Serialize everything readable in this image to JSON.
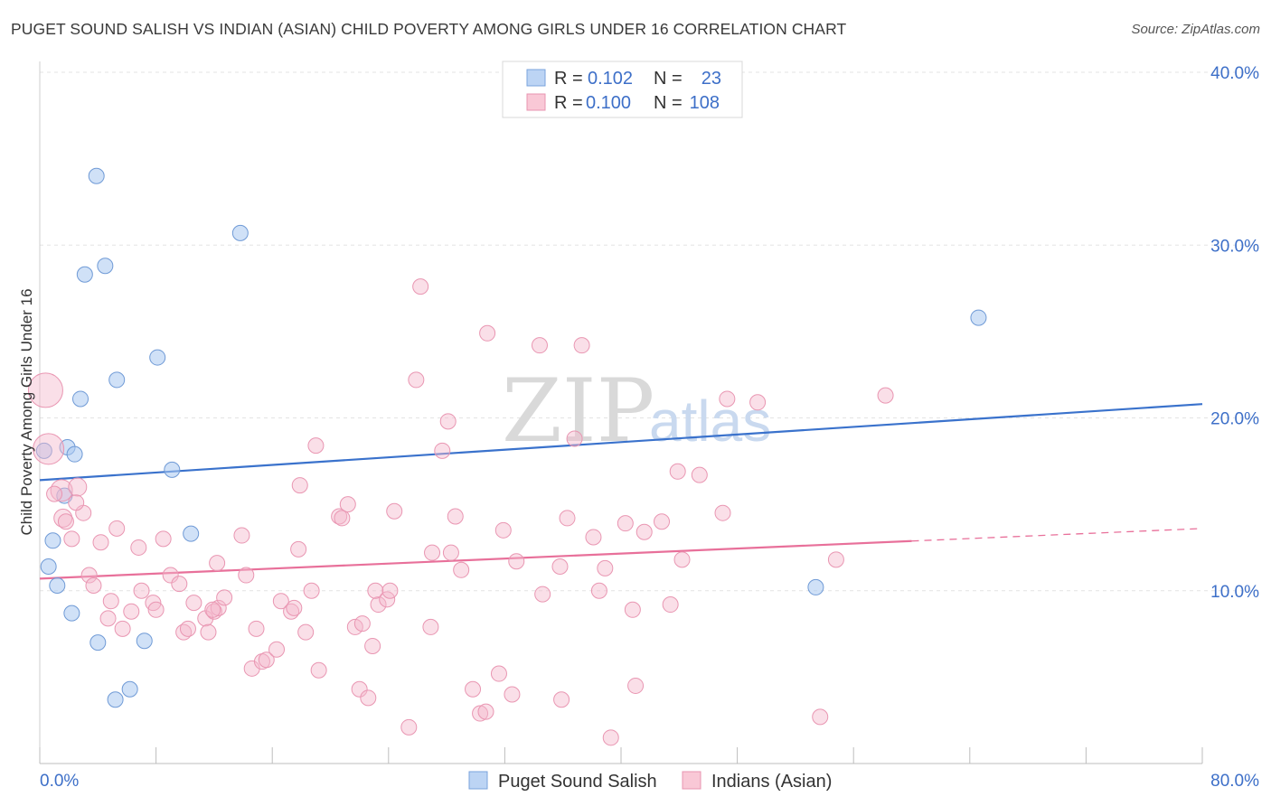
{
  "title": "PUGET SOUND SALISH VS INDIAN (ASIAN) CHILD POVERTY AMONG GIRLS UNDER 16 CORRELATION CHART",
  "source": "Source: ZipAtlas.com",
  "watermark": {
    "zip": "ZIP",
    "atlas": "atlas"
  },
  "legend": {
    "rows": [
      {
        "r_label": "R =",
        "r_value": "0.102",
        "n_label": "N =",
        "n_value": "23"
      },
      {
        "r_label": "R =",
        "r_value": "0.100",
        "n_label": "N =",
        "n_value": "108"
      }
    ]
  },
  "bottom_legend": [
    "Puget Sound Salish",
    "Indians (Asian)"
  ],
  "chart_data": {
    "type": "scatter",
    "title": "PUGET SOUND SALISH VS INDIAN (ASIAN) CHILD POVERTY AMONG GIRLS UNDER 16 CORRELATION CHART",
    "xlabel": "",
    "ylabel": "Child Poverty Among Girls Under 16",
    "xlim": [
      0,
      80
    ],
    "ylim": [
      0,
      40
    ],
    "x_tick_labels": [
      "0.0%",
      "80.0%"
    ],
    "y_ticks": [
      10,
      20,
      30,
      40
    ],
    "y_tick_labels": [
      "10.0%",
      "20.0%",
      "30.0%",
      "40.0%"
    ],
    "colors": {
      "blue": "#a9c8f0",
      "blue_line": "#3a72cc",
      "pink": "#f5b8cb",
      "pink_line": "#e8709a",
      "axis_text": "#3d6fc8"
    },
    "series": [
      {
        "name": "Puget Sound Salish",
        "color": "blue",
        "trend": {
          "x0": 0,
          "y0": 16.4,
          "x1": 80,
          "y1": 20.8,
          "dashed_from": null
        },
        "points": [
          [
            3.9,
            34.0
          ],
          [
            13.8,
            30.7
          ],
          [
            4.5,
            28.8
          ],
          [
            3.1,
            28.3
          ],
          [
            8.1,
            23.5
          ],
          [
            5.3,
            22.2
          ],
          [
            2.8,
            21.1
          ],
          [
            1.9,
            18.3
          ],
          [
            2.4,
            17.9
          ],
          [
            0.3,
            18.1
          ],
          [
            9.1,
            17.0
          ],
          [
            1.7,
            15.5
          ],
          [
            0.9,
            12.9
          ],
          [
            10.4,
            13.3
          ],
          [
            0.6,
            11.4
          ],
          [
            1.2,
            10.3
          ],
          [
            2.2,
            8.7
          ],
          [
            4.0,
            7.0
          ],
          [
            7.2,
            7.1
          ],
          [
            6.2,
            4.3
          ],
          [
            5.2,
            3.7
          ],
          [
            64.6,
            25.8
          ],
          [
            53.4,
            10.2
          ]
        ]
      },
      {
        "name": "Indians (Asian)",
        "color": "pink",
        "trend": {
          "x0": 0,
          "y0": 10.7,
          "x1": 80,
          "y1": 13.6,
          "dashed_from": 60
        },
        "points": [
          [
            0.4,
            21.6
          ],
          [
            0.6,
            18.2
          ],
          [
            1.5,
            15.8
          ],
          [
            2.6,
            16.0
          ],
          [
            1.6,
            14.2
          ],
          [
            1.8,
            14.0
          ],
          [
            3.0,
            14.5
          ],
          [
            2.2,
            13.0
          ],
          [
            4.2,
            12.8
          ],
          [
            5.3,
            13.6
          ],
          [
            6.8,
            12.5
          ],
          [
            8.5,
            13.0
          ],
          [
            3.4,
            10.9
          ],
          [
            3.7,
            10.3
          ],
          [
            4.9,
            9.4
          ],
          [
            6.3,
            8.8
          ],
          [
            7.0,
            10.0
          ],
          [
            7.8,
            9.3
          ],
          [
            8.0,
            8.9
          ],
          [
            4.7,
            8.4
          ],
          [
            5.7,
            7.8
          ],
          [
            9.0,
            10.9
          ],
          [
            9.6,
            10.4
          ],
          [
            9.9,
            7.6
          ],
          [
            10.2,
            7.8
          ],
          [
            10.6,
            9.3
          ],
          [
            11.4,
            8.4
          ],
          [
            12.0,
            8.8
          ],
          [
            12.3,
            9.0
          ],
          [
            12.7,
            9.6
          ],
          [
            13.9,
            13.2
          ],
          [
            14.2,
            10.9
          ],
          [
            12.2,
            11.6
          ],
          [
            11.6,
            7.6
          ],
          [
            14.9,
            7.8
          ],
          [
            14.6,
            5.5
          ],
          [
            15.3,
            5.9
          ],
          [
            15.6,
            6.0
          ],
          [
            16.3,
            6.6
          ],
          [
            16.6,
            9.4
          ],
          [
            17.3,
            8.8
          ],
          [
            17.5,
            9.0
          ],
          [
            18.3,
            7.6
          ],
          [
            18.7,
            10.0
          ],
          [
            19.2,
            5.4
          ],
          [
            17.8,
            12.4
          ],
          [
            19.0,
            18.4
          ],
          [
            17.9,
            16.1
          ],
          [
            20.6,
            14.3
          ],
          [
            20.8,
            14.2
          ],
          [
            21.2,
            15.0
          ],
          [
            21.7,
            7.9
          ],
          [
            22.2,
            8.1
          ],
          [
            22.0,
            4.3
          ],
          [
            22.6,
            3.8
          ],
          [
            22.9,
            6.8
          ],
          [
            23.3,
            9.2
          ],
          [
            23.1,
            10.0
          ],
          [
            23.9,
            9.5
          ],
          [
            24.1,
            10.0
          ],
          [
            24.4,
            14.6
          ],
          [
            25.4,
            2.1
          ],
          [
            25.9,
            22.2
          ],
          [
            26.2,
            27.6
          ],
          [
            26.9,
            7.9
          ],
          [
            27.0,
            12.2
          ],
          [
            27.7,
            18.1
          ],
          [
            28.1,
            19.8
          ],
          [
            28.3,
            12.2
          ],
          [
            28.6,
            14.3
          ],
          [
            29.0,
            11.2
          ],
          [
            29.8,
            4.3
          ],
          [
            30.3,
            2.9
          ],
          [
            30.7,
            3.0
          ],
          [
            30.8,
            24.9
          ],
          [
            31.6,
            5.2
          ],
          [
            31.9,
            13.5
          ],
          [
            32.5,
            4.0
          ],
          [
            32.8,
            11.7
          ],
          [
            34.4,
            24.2
          ],
          [
            34.6,
            9.8
          ],
          [
            35.9,
            3.7
          ],
          [
            35.8,
            11.4
          ],
          [
            36.3,
            14.2
          ],
          [
            36.8,
            18.8
          ],
          [
            37.3,
            24.2
          ],
          [
            38.1,
            13.1
          ],
          [
            38.5,
            10.0
          ],
          [
            38.9,
            11.3
          ],
          [
            39.3,
            1.5
          ],
          [
            40.3,
            13.9
          ],
          [
            40.8,
            8.9
          ],
          [
            41.0,
            4.5
          ],
          [
            41.6,
            13.4
          ],
          [
            42.8,
            14.0
          ],
          [
            43.4,
            9.2
          ],
          [
            43.9,
            16.9
          ],
          [
            44.2,
            11.8
          ],
          [
            45.4,
            16.7
          ],
          [
            47.0,
            14.5
          ],
          [
            47.3,
            21.1
          ],
          [
            49.4,
            20.9
          ],
          [
            54.8,
            11.8
          ],
          [
            58.2,
            21.3
          ],
          [
            53.7,
            2.7
          ],
          [
            1.0,
            15.6
          ],
          [
            2.5,
            15.1
          ],
          [
            11.9,
            8.9
          ]
        ]
      }
    ]
  }
}
